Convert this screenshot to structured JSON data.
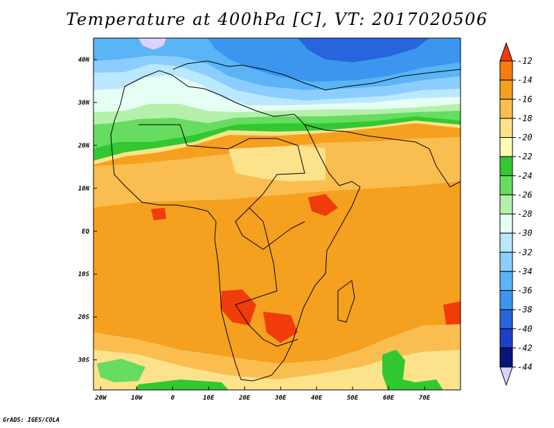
{
  "title": "Temperature at 400hPa [C], VT: 2017020506",
  "footer": "GrADS: IGES/COLA",
  "map": {
    "lon_labels": [
      "20W",
      "10W",
      "0",
      "10E",
      "20E",
      "30E",
      "40E",
      "50E",
      "60E",
      "70E"
    ],
    "lat_labels": [
      "40N",
      "30N",
      "20N",
      "10N",
      "EQ",
      "10S",
      "20S",
      "30S"
    ],
    "extent": {
      "lon": [
        -22,
        80
      ],
      "lat": [
        -37,
        45
      ]
    },
    "variable": "Temperature",
    "level": "400hPa",
    "units": "C",
    "valid_time": "2017020506"
  },
  "colorbar": {
    "labels": [
      "-12",
      "-14",
      "-16",
      "-18",
      "-20",
      "-22",
      "-24",
      "-26",
      "-28",
      "-30",
      "-32",
      "-34",
      "-36",
      "-38",
      "-40",
      "-42",
      "-44"
    ],
    "colors": [
      "#f03c0a",
      "#f57f0a",
      "#f5a01e",
      "#fabe50",
      "#fde28c",
      "#fffab4",
      "#32c832",
      "#66dc60",
      "#b4f0aa",
      "#e6fff5",
      "#bae8ff",
      "#8ccdff",
      "#5ab4f5",
      "#3c96f0",
      "#2864dc",
      "#1e40c8",
      "#0a147a",
      "#dcd2ff"
    ]
  }
}
